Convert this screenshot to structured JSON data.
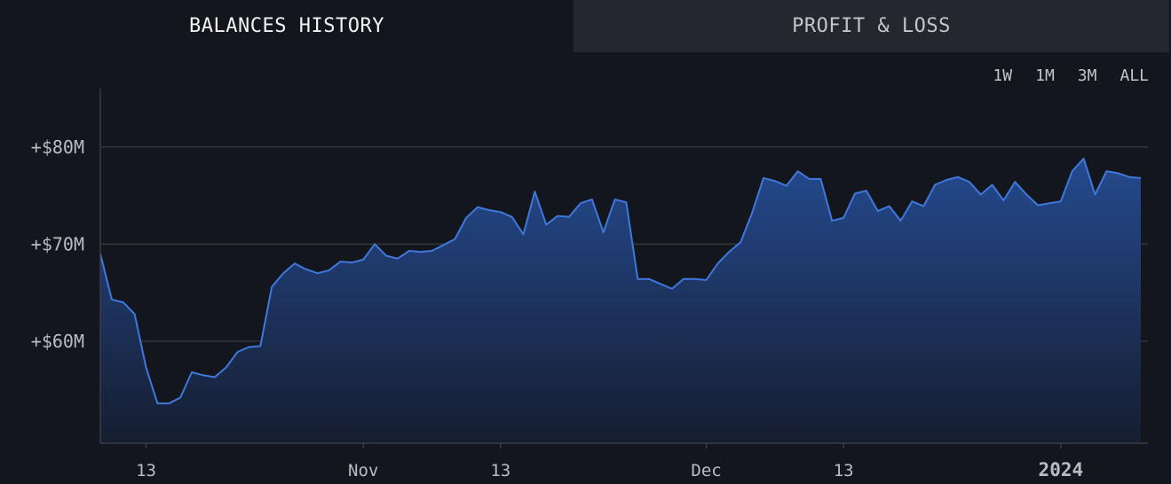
{
  "tabs": {
    "balances_history": "BALANCES HISTORY",
    "profit_loss": "PROFIT & LOSS"
  },
  "ranges": [
    "1W",
    "1M",
    "3M",
    "ALL"
  ],
  "colors": {
    "background": "#14161d",
    "line": "#3f78dd",
    "area_top": "#244a8f",
    "area_bottom": "#161d30",
    "grid": "#33363d",
    "axis": "#3a3d45"
  },
  "chart_data": {
    "type": "area",
    "title": "",
    "xlabel": "",
    "ylabel": "",
    "x_start": "2023-10-09",
    "x_end": "2024-01-08",
    "ylim": [
      49.5,
      86
    ],
    "yticks": [
      60,
      70,
      80
    ],
    "ytick_labels": [
      "+$60M",
      "+$70M",
      "+$80M"
    ],
    "xticks": [
      {
        "date": "2023-10-13",
        "label": "13",
        "bold": false
      },
      {
        "date": "2023-11-01",
        "label": "Nov",
        "bold": false
      },
      {
        "date": "2023-11-13",
        "label": "13",
        "bold": false
      },
      {
        "date": "2023-12-01",
        "label": "Dec",
        "bold": false
      },
      {
        "date": "2023-12-13",
        "label": "13",
        "bold": false
      },
      {
        "date": "2024-01-01",
        "label": "2024",
        "bold": true
      }
    ],
    "grid": true,
    "legend": "none",
    "series": [
      {
        "points": [
          [
            "2023-10-09",
            69.0
          ],
          [
            "2023-10-10",
            64.3
          ],
          [
            "2023-10-11",
            64.0
          ],
          [
            "2023-10-12",
            62.8
          ],
          [
            "2023-10-13",
            57.3
          ],
          [
            "2023-10-14",
            53.6
          ],
          [
            "2023-10-15",
            53.6
          ],
          [
            "2023-10-16",
            54.2
          ],
          [
            "2023-10-17",
            56.8
          ],
          [
            "2023-10-18",
            56.5
          ],
          [
            "2023-10-19",
            56.3
          ],
          [
            "2023-10-20",
            57.3
          ],
          [
            "2023-10-21",
            58.9
          ],
          [
            "2023-10-22",
            59.4
          ],
          [
            "2023-10-23",
            59.5
          ],
          [
            "2023-10-24",
            65.6
          ],
          [
            "2023-10-25",
            67.0
          ],
          [
            "2023-10-26",
            68.0
          ],
          [
            "2023-10-27",
            67.4
          ],
          [
            "2023-10-28",
            67.0
          ],
          [
            "2023-10-29",
            67.3
          ],
          [
            "2023-10-30",
            68.2
          ],
          [
            "2023-10-31",
            68.1
          ],
          [
            "2023-11-01",
            68.4
          ],
          [
            "2023-11-02",
            70.0
          ],
          [
            "2023-11-03",
            68.8
          ],
          [
            "2023-11-04",
            68.5
          ],
          [
            "2023-11-05",
            69.3
          ],
          [
            "2023-11-06",
            69.2
          ],
          [
            "2023-11-07",
            69.3
          ],
          [
            "2023-11-08",
            69.9
          ],
          [
            "2023-11-09",
            70.5
          ],
          [
            "2023-11-10",
            72.7
          ],
          [
            "2023-11-11",
            73.8
          ],
          [
            "2023-11-12",
            73.5
          ],
          [
            "2023-11-13",
            73.3
          ],
          [
            "2023-11-14",
            72.8
          ],
          [
            "2023-11-15",
            71.0
          ],
          [
            "2023-11-16",
            75.4
          ],
          [
            "2023-11-17",
            72.0
          ],
          [
            "2023-11-18",
            72.9
          ],
          [
            "2023-11-19",
            72.8
          ],
          [
            "2023-11-20",
            74.2
          ],
          [
            "2023-11-21",
            74.6
          ],
          [
            "2023-11-22",
            71.2
          ],
          [
            "2023-11-23",
            74.6
          ],
          [
            "2023-11-24",
            74.3
          ],
          [
            "2023-11-25",
            66.4
          ],
          [
            "2023-11-26",
            66.4
          ],
          [
            "2023-11-27",
            65.9
          ],
          [
            "2023-11-28",
            65.4
          ],
          [
            "2023-11-29",
            66.4
          ],
          [
            "2023-11-30",
            66.4
          ],
          [
            "2023-12-01",
            66.3
          ],
          [
            "2023-12-02",
            68.0
          ],
          [
            "2023-12-03",
            69.2
          ],
          [
            "2023-12-04",
            70.2
          ],
          [
            "2023-12-05",
            73.2
          ],
          [
            "2023-12-06",
            76.8
          ],
          [
            "2023-12-07",
            76.5
          ],
          [
            "2023-12-08",
            76.0
          ],
          [
            "2023-12-09",
            77.5
          ],
          [
            "2023-12-10",
            76.7
          ],
          [
            "2023-12-11",
            76.7
          ],
          [
            "2023-12-12",
            72.4
          ],
          [
            "2023-12-13",
            72.7
          ],
          [
            "2023-12-14",
            75.2
          ],
          [
            "2023-12-15",
            75.5
          ],
          [
            "2023-12-16",
            73.4
          ],
          [
            "2023-12-17",
            73.9
          ],
          [
            "2023-12-18",
            72.4
          ],
          [
            "2023-12-19",
            74.4
          ],
          [
            "2023-12-20",
            73.9
          ],
          [
            "2023-12-21",
            76.1
          ],
          [
            "2023-12-22",
            76.6
          ],
          [
            "2023-12-23",
            76.9
          ],
          [
            "2023-12-24",
            76.4
          ],
          [
            "2023-12-25",
            75.1
          ],
          [
            "2023-12-26",
            76.1
          ],
          [
            "2023-12-27",
            74.5
          ],
          [
            "2023-12-28",
            76.4
          ],
          [
            "2023-12-29",
            75.1
          ],
          [
            "2023-12-30",
            74.0
          ],
          [
            "2023-12-31",
            74.2
          ],
          [
            "2024-01-01",
            74.4
          ],
          [
            "2024-01-02",
            77.5
          ],
          [
            "2024-01-03",
            78.8
          ],
          [
            "2024-01-04",
            75.1
          ],
          [
            "2024-01-05",
            77.5
          ],
          [
            "2024-01-06",
            77.3
          ],
          [
            "2024-01-07",
            76.9
          ],
          [
            "2024-01-08",
            76.8
          ]
        ]
      }
    ]
  }
}
